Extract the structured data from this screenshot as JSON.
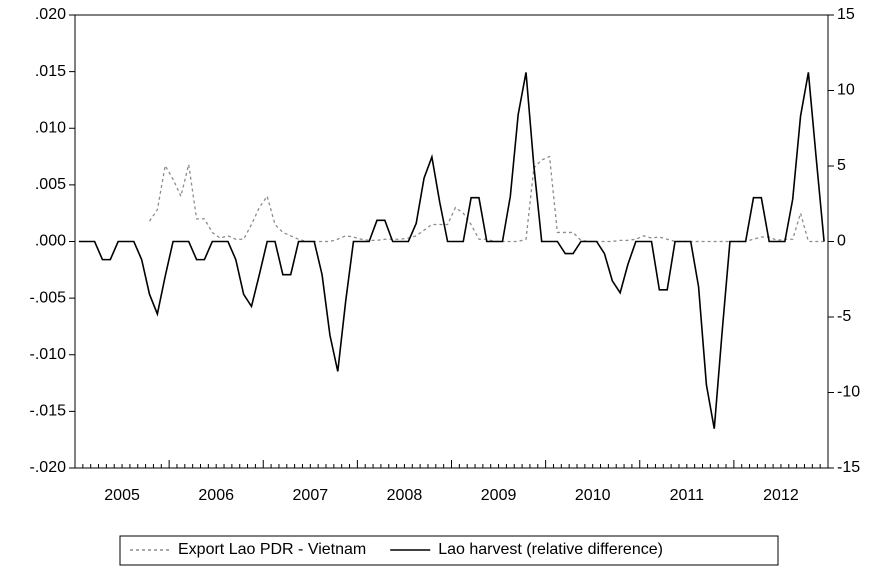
{
  "chart_data": {
    "type": "line",
    "categories": [
      "2005",
      null,
      null,
      null,
      null,
      null,
      null,
      null,
      null,
      null,
      null,
      null,
      "2006",
      null,
      null,
      null,
      null,
      null,
      null,
      null,
      null,
      null,
      null,
      null,
      "2007",
      null,
      null,
      null,
      null,
      null,
      null,
      null,
      null,
      null,
      null,
      null,
      "2008",
      null,
      null,
      null,
      null,
      null,
      null,
      null,
      null,
      null,
      null,
      null,
      "2009",
      null,
      null,
      null,
      null,
      null,
      null,
      null,
      null,
      null,
      null,
      null,
      "2010",
      null,
      null,
      null,
      null,
      null,
      null,
      null,
      null,
      null,
      null,
      null,
      "2011",
      null,
      null,
      null,
      null,
      null,
      null,
      null,
      null,
      null,
      null,
      null,
      "2012",
      null,
      null,
      null,
      null,
      null,
      null,
      null,
      null,
      null,
      null,
      null
    ],
    "series": [
      {
        "name": "Export Lao PDR - Vietnam",
        "color": "#8c8c8c",
        "linestyle": "dotted",
        "values": [
          null,
          null,
          null,
          null,
          null,
          null,
          null,
          null,
          null,
          0.0018,
          0.0028,
          0.0067,
          0.0055,
          0.004,
          0.0068,
          0.002,
          0.002,
          0.0008,
          0.0003,
          0.0005,
          0.0002,
          0.0002,
          0.0015,
          0.003,
          0.004,
          0.0015,
          0.0008,
          0.0005,
          0.0002,
          0,
          0,
          0,
          0,
          0.0002,
          0.0005,
          0.0004,
          0.0002,
          0.0001,
          0.0001,
          0.0002,
          0.0002,
          0.0002,
          0.0003,
          0.0005,
          0.001,
          0.0015,
          0.0015,
          0.0015,
          0.003,
          0.0025,
          0.0015,
          0.0002,
          0.0002,
          0,
          0,
          0,
          0,
          0.0002,
          0.0065,
          0.0072,
          0.0075,
          0.0008,
          0.0008,
          0.0008,
          0.0001,
          0,
          0,
          0,
          0,
          0.0001,
          0.0001,
          0.0002,
          0.0005,
          0.0003,
          0.0004,
          0.0002,
          0,
          0,
          0,
          0,
          0,
          0,
          0,
          0,
          0,
          0,
          0.0002,
          0.0004,
          0.0004,
          0.0001,
          0.0002,
          0.0002,
          0.0025,
          0,
          0,
          0
        ]
      },
      {
        "name": "Lao harvest (relative difference)",
        "color": "#000000",
        "linestyle": "solid",
        "axis": "y2",
        "values": [
          0,
          0,
          0,
          -1.2,
          -1.2,
          0,
          0,
          0,
          -1.2,
          -3.5,
          -4.8,
          -2.3,
          0,
          0,
          0,
          -1.2,
          -1.2,
          0,
          0,
          0,
          -1.2,
          -3.5,
          -4.3,
          -2.2,
          0,
          0,
          -2.2,
          -2.2,
          0,
          0,
          0,
          -2.2,
          -6.2,
          -8.6,
          -4,
          0,
          0,
          0,
          1.4,
          1.4,
          0,
          0,
          0,
          1.2,
          4.2,
          5.6,
          2.6,
          0,
          0,
          0,
          2.9,
          2.9,
          0,
          0,
          0,
          3,
          8.4,
          11.2,
          5,
          0,
          0,
          0,
          -0.8,
          -0.8,
          0,
          0,
          0,
          -0.8,
          -2.6,
          -3.4,
          -1.5,
          0,
          0,
          0,
          -3.2,
          -3.2,
          0,
          0,
          0,
          -3,
          -9.5,
          -12.4,
          -6,
          0,
          0,
          0,
          2.9,
          2.9,
          0,
          0,
          0,
          2.8,
          8.3,
          11.2,
          5.5,
          0
        ]
      }
    ],
    "ylim": [
      -0.02,
      0.02
    ],
    "yticks": [
      {
        "value": -0.02,
        "label": "-.020"
      },
      {
        "value": -0.015,
        "label": "-.015"
      },
      {
        "value": -0.01,
        "label": "-.010"
      },
      {
        "value": -0.005,
        "label": "-.005"
      },
      {
        "value": 0,
        "label": ".000"
      },
      {
        "value": 0.005,
        "label": ".005"
      },
      {
        "value": 0.01,
        "label": ".010"
      },
      {
        "value": 0.015,
        "label": ".015"
      },
      {
        "value": 0.02,
        "label": ".020"
      }
    ],
    "y2lim": [
      -15,
      15
    ],
    "y2ticks": [
      -15,
      -10,
      -5,
      0,
      5,
      10,
      15
    ],
    "legend": "bottom"
  }
}
